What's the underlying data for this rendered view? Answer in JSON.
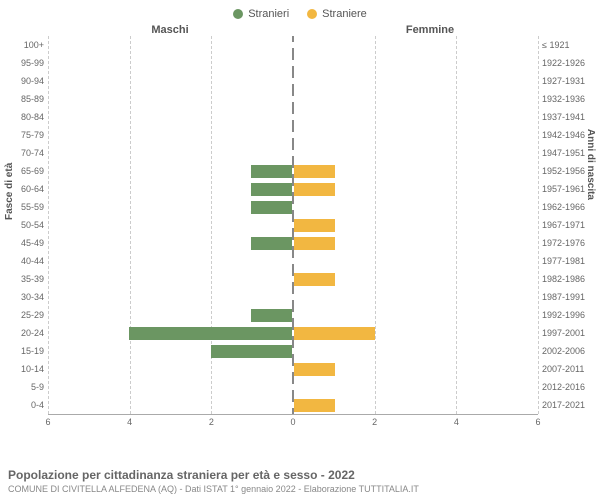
{
  "legend": {
    "male": {
      "label": "Stranieri",
      "color": "#6b9662"
    },
    "female": {
      "label": "Straniere",
      "color": "#f2b741"
    }
  },
  "headers": {
    "male": "Maschi",
    "female": "Femmine"
  },
  "axis_labels": {
    "left": "Fasce di età",
    "right": "Anni di nascita"
  },
  "chart": {
    "type": "population-pyramid",
    "xmax": 6,
    "xticks": [
      0,
      2,
      4,
      6
    ],
    "bar_colors": {
      "male": "#6b9662",
      "female": "#f2b741"
    },
    "grid_color": "#cccccc",
    "center_line_color": "#888888",
    "background_color": "#ffffff",
    "rows": [
      {
        "age": "100+",
        "years": "≤ 1921",
        "m": 0,
        "f": 0
      },
      {
        "age": "95-99",
        "years": "1922-1926",
        "m": 0,
        "f": 0
      },
      {
        "age": "90-94",
        "years": "1927-1931",
        "m": 0,
        "f": 0
      },
      {
        "age": "85-89",
        "years": "1932-1936",
        "m": 0,
        "f": 0
      },
      {
        "age": "80-84",
        "years": "1937-1941",
        "m": 0,
        "f": 0
      },
      {
        "age": "75-79",
        "years": "1942-1946",
        "m": 0,
        "f": 0
      },
      {
        "age": "70-74",
        "years": "1947-1951",
        "m": 0,
        "f": 0
      },
      {
        "age": "65-69",
        "years": "1952-1956",
        "m": 1,
        "f": 1
      },
      {
        "age": "60-64",
        "years": "1957-1961",
        "m": 1,
        "f": 1
      },
      {
        "age": "55-59",
        "years": "1962-1966",
        "m": 1,
        "f": 0
      },
      {
        "age": "50-54",
        "years": "1967-1971",
        "m": 0,
        "f": 1
      },
      {
        "age": "45-49",
        "years": "1972-1976",
        "m": 1,
        "f": 1
      },
      {
        "age": "40-44",
        "years": "1977-1981",
        "m": 0,
        "f": 0
      },
      {
        "age": "35-39",
        "years": "1982-1986",
        "m": 0,
        "f": 1
      },
      {
        "age": "30-34",
        "years": "1987-1991",
        "m": 0,
        "f": 0
      },
      {
        "age": "25-29",
        "years": "1992-1996",
        "m": 1,
        "f": 0
      },
      {
        "age": "20-24",
        "years": "1997-2001",
        "m": 4,
        "f": 2
      },
      {
        "age": "15-19",
        "years": "2002-2006",
        "m": 2,
        "f": 0
      },
      {
        "age": "10-14",
        "years": "2007-2011",
        "m": 0,
        "f": 1
      },
      {
        "age": "5-9",
        "years": "2012-2016",
        "m": 0,
        "f": 0
      },
      {
        "age": "0-4",
        "years": "2017-2021",
        "m": 0,
        "f": 1
      }
    ]
  },
  "footer": {
    "title": "Popolazione per cittadinanza straniera per età e sesso - 2022",
    "subtitle": "COMUNE DI CIVITELLA ALFEDENA (AQ) - Dati ISTAT 1° gennaio 2022 - Elaborazione TUTTITALIA.IT"
  }
}
